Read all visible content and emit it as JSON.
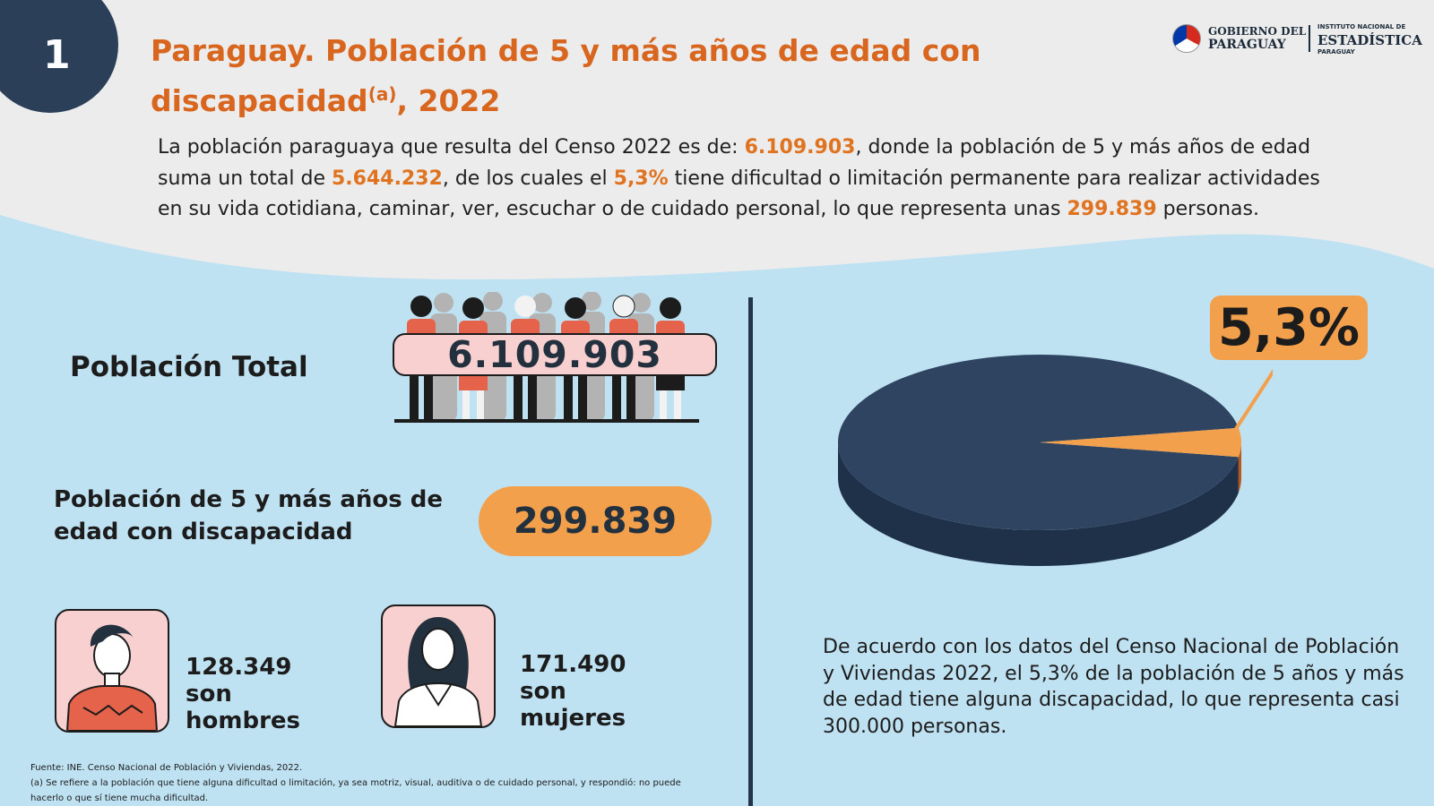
{
  "header": {
    "number": "1",
    "title_main": "Paraguay. Población de 5 y más años de edad con discapacidad",
    "title_sup": "(a)",
    "title_end": ", 2022"
  },
  "logo": {
    "gov_line1": "GOBIERNO DEL",
    "gov_line2": "PARAGUAY",
    "ine_line1": "INSTITUTO NACIONAL DE",
    "ine_line2": "ESTADÍSTICA",
    "ine_line3": "PARAGUAY"
  },
  "intro": {
    "t1": "La población paraguaya que resulta del Censo 2022 es de: ",
    "h1": "6.109.903",
    "t2": ", donde la población de  5 y más años de edad suma un total de ",
    "h2": "5.644.232",
    "t3": ", de los cuales el ",
    "h3": "5,3%",
    "t4": " tiene dificultad o limitación permanente para realizar actividades en su vida cotidiana, caminar, ver, escuchar o de cuidado personal, lo que representa unas ",
    "h4": "299.839",
    "t5": " personas."
  },
  "left": {
    "total_label": "Población Total",
    "total_value": "6.109.903",
    "disc_label": "Población de 5 y más años de edad con discapacidad",
    "disc_value": "299.839",
    "men_text": "128.349 son hombres",
    "women_text": "171.490 son mujeres"
  },
  "source": {
    "line1": "Fuente: INE. Censo Nacional de Población y Viviendas, 2022.",
    "line2": "(a) Se refiere a la población que tiene alguna dificultad o limitación, ya sea motriz, visual, auditiva o de cuidado personal, y respondió: no puede hacerlo o que sí tiene mucha dificultad."
  },
  "right": {
    "pct_label": "5,3%",
    "text": "De acuerdo con los datos del Censo Nacional de Población y Viviendas 2022, el 5,3% de la población de 5 años y más de edad tiene alguna discapacidad, lo que representa casi 300.000 personas."
  },
  "chart_data": {
    "type": "pie",
    "title": "",
    "slices": [
      {
        "label": "",
        "value": 94.7,
        "color": "#2e4460"
      },
      {
        "label": "5,3%",
        "value": 5.3,
        "color": "#f3a04c"
      }
    ]
  },
  "colors": {
    "accent_orange": "#e0731f",
    "navy": "#2e4460",
    "light_blue_bg": "#bfe2f3",
    "light_gray_bg": "#ececec",
    "pink": "#f8d0cf"
  }
}
